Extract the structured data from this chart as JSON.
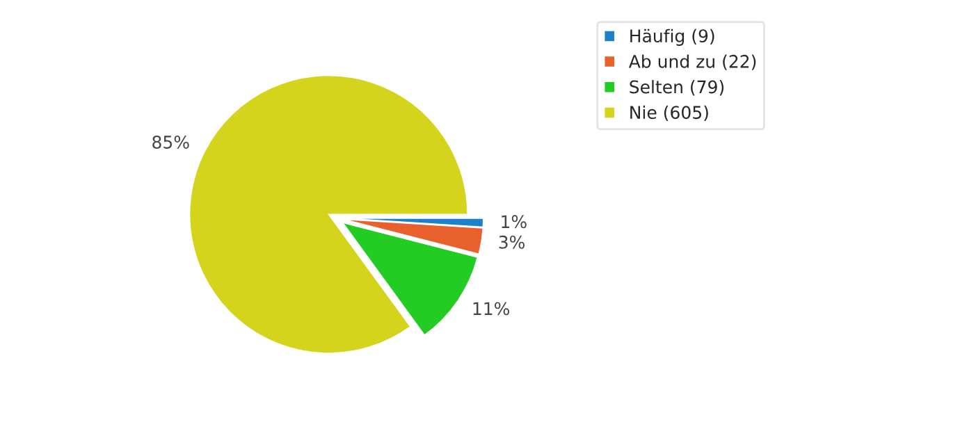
{
  "chart_data": {
    "type": "pie",
    "categories": [
      "Häufig (9)",
      "Ab und zu (22)",
      "Selten (79)",
      "Nie (605)"
    ],
    "values": [
      1,
      3,
      11,
      85
    ],
    "colors": [
      "#1e7fcb",
      "#e8602c",
      "#22cc22",
      "#d4d41c"
    ],
    "data_labels": true,
    "value_labels": [
      "1%",
      "3%",
      "11%",
      "85%"
    ],
    "legend": "top right"
  }
}
